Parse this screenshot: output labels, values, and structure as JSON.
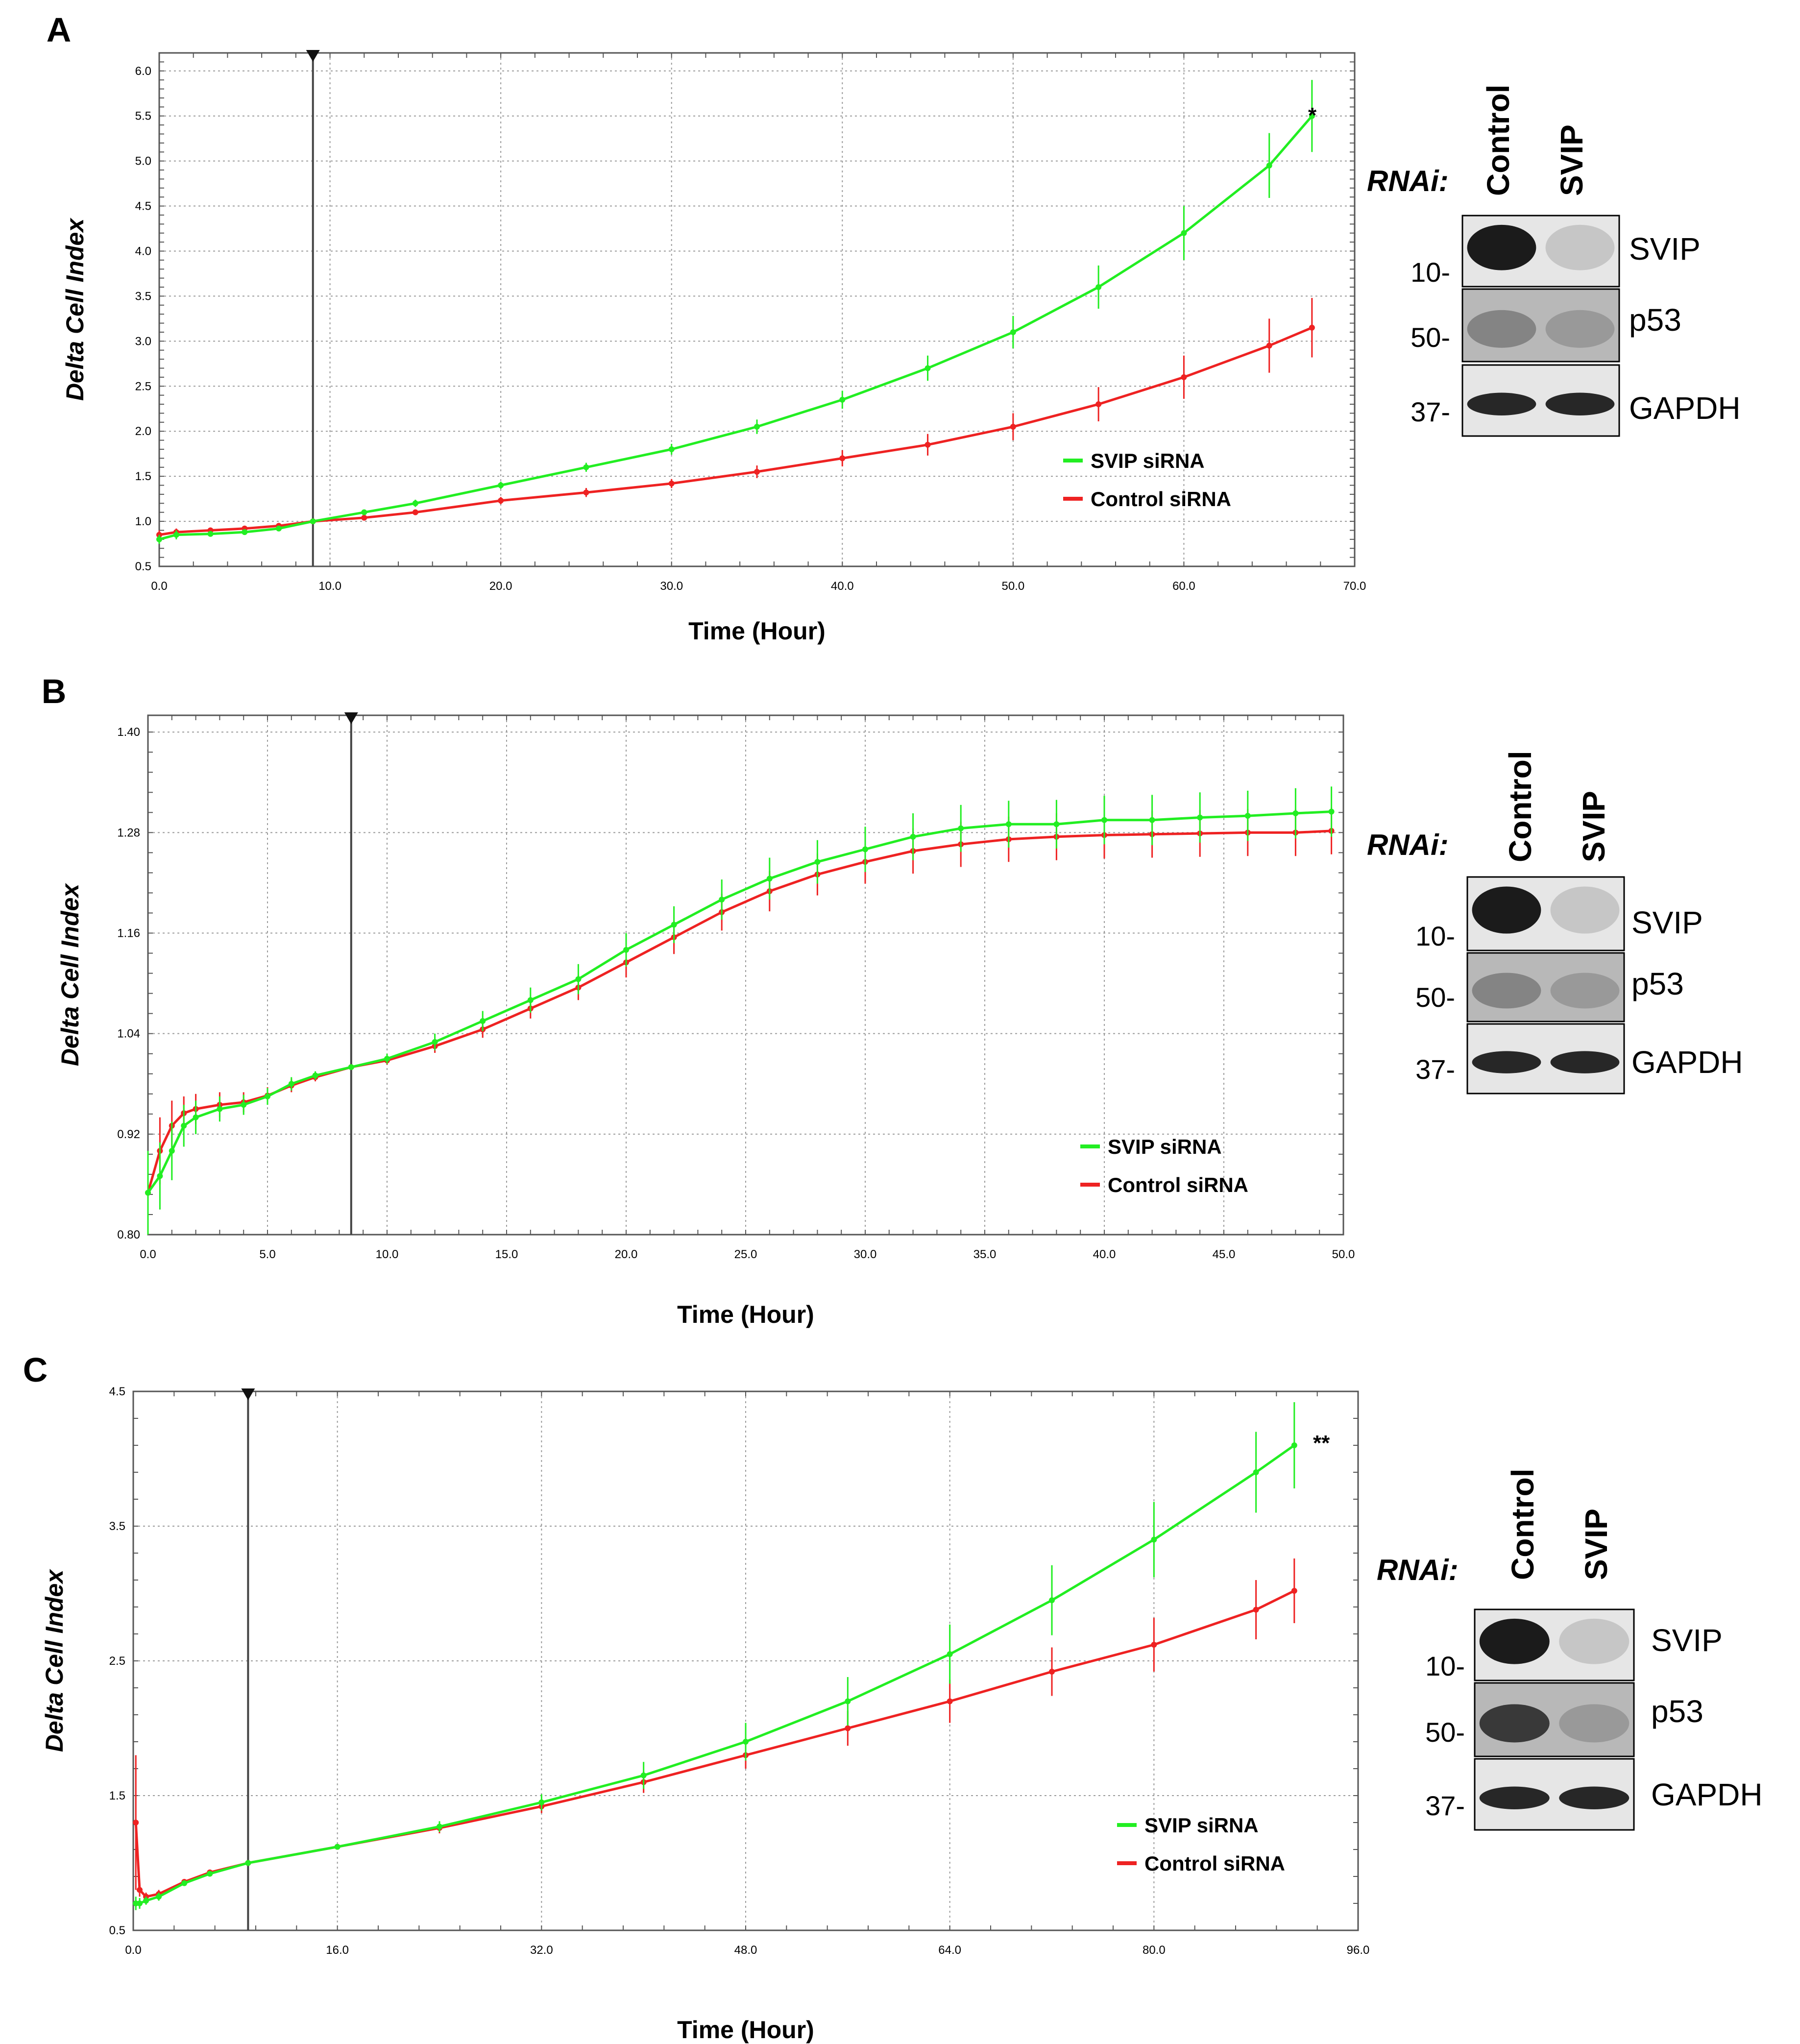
{
  "chart_data": [
    {
      "panel": "A",
      "type": "line",
      "xlabel": "Time (Hour)",
      "ylabel": "Delta Cell Index",
      "xlim": [
        0,
        70
      ],
      "ylim": [
        0.5,
        6.2
      ],
      "xticks": [
        0,
        10,
        20,
        30,
        40,
        50,
        60,
        70
      ],
      "xtick_labels": [
        "0.0",
        "10.0",
        "20.0",
        "30.0",
        "40.0",
        "50.0",
        "60.0",
        "70.0"
      ],
      "yticks": [
        0.5,
        1.0,
        1.5,
        2.0,
        2.5,
        3.0,
        3.5,
        4.0,
        4.5,
        5.0,
        5.5,
        6.0
      ],
      "ytick_labels": [
        "0.5",
        "1.0",
        "1.5",
        "2.0",
        "2.5",
        "3.0",
        "3.5",
        "4.0",
        "4.5",
        "5.0",
        "5.5",
        "6.0"
      ],
      "normalization_time": 9,
      "significance": "*",
      "legend": [
        "SVIP siRNA",
        "Control siRNA"
      ],
      "x": [
        0,
        1,
        3,
        5,
        7,
        9,
        12,
        15,
        20,
        25,
        30,
        35,
        40,
        45,
        50,
        55,
        60,
        65,
        67.5
      ],
      "series": [
        {
          "name": "SVIP siRNA",
          "color": "#22ee22",
          "values": [
            0.8,
            0.85,
            0.86,
            0.88,
            0.92,
            1.0,
            1.1,
            1.2,
            1.4,
            1.6,
            1.8,
            2.05,
            2.35,
            2.7,
            3.1,
            3.6,
            4.2,
            4.95,
            5.5
          ],
          "errors": [
            0.05,
            0.05,
            0.03,
            0.03,
            0.03,
            0.0,
            0.03,
            0.04,
            0.04,
            0.05,
            0.06,
            0.08,
            0.1,
            0.14,
            0.18,
            0.24,
            0.3,
            0.36,
            0.4
          ]
        },
        {
          "name": "Control siRNA",
          "color": "#ee2222",
          "values": [
            0.85,
            0.88,
            0.9,
            0.92,
            0.95,
            1.0,
            1.04,
            1.1,
            1.23,
            1.32,
            1.42,
            1.55,
            1.7,
            1.85,
            2.05,
            2.3,
            2.6,
            2.95,
            3.15
          ],
          "errors": [
            0.05,
            0.04,
            0.03,
            0.03,
            0.03,
            0.0,
            0.03,
            0.03,
            0.04,
            0.05,
            0.05,
            0.07,
            0.09,
            0.12,
            0.15,
            0.19,
            0.24,
            0.3,
            0.33
          ]
        }
      ]
    },
    {
      "panel": "B",
      "type": "line",
      "xlabel": "Time (Hour)",
      "ylabel": "Delta Cell Index",
      "xlim": [
        0,
        50
      ],
      "ylim": [
        0.8,
        1.42
      ],
      "xticks": [
        0,
        5,
        10,
        15,
        20,
        25,
        30,
        35,
        40,
        45,
        50
      ],
      "xtick_labels": [
        "0.0",
        "5.0",
        "10.0",
        "15.0",
        "20.0",
        "25.0",
        "30.0",
        "35.0",
        "40.0",
        "45.0",
        "50.0"
      ],
      "yticks": [
        0.8,
        0.92,
        1.04,
        1.16,
        1.28,
        1.4
      ],
      "ytick_labels": [
        "0.80",
        "0.92",
        "1.04",
        "1.16",
        "1.28",
        "1.40"
      ],
      "normalization_time": 8.5,
      "significance": "",
      "legend": [
        "SVIP siRNA",
        "Control siRNA"
      ],
      "x": [
        0,
        0.5,
        1,
        1.5,
        2,
        3,
        4,
        5,
        6,
        7,
        8.5,
        10,
        12,
        14,
        16,
        18,
        20,
        22,
        24,
        26,
        28,
        30,
        32,
        34,
        36,
        38,
        40,
        42,
        44,
        46,
        48,
        49.5
      ],
      "series": [
        {
          "name": "SVIP siRNA",
          "color": "#22ee22",
          "values": [
            0.85,
            0.87,
            0.9,
            0.93,
            0.94,
            0.95,
            0.955,
            0.965,
            0.98,
            0.99,
            1.0,
            1.01,
            1.03,
            1.055,
            1.08,
            1.105,
            1.14,
            1.17,
            1.2,
            1.225,
            1.245,
            1.26,
            1.275,
            1.285,
            1.29,
            1.29,
            1.295,
            1.295,
            1.298,
            1.3,
            1.303,
            1.305
          ],
          "errors": [
            0.05,
            0.04,
            0.035,
            0.025,
            0.02,
            0.015,
            0.012,
            0.01,
            0.008,
            0.005,
            0.0,
            0.006,
            0.01,
            0.012,
            0.015,
            0.018,
            0.02,
            0.022,
            0.024,
            0.025,
            0.026,
            0.027,
            0.028,
            0.028,
            0.028,
            0.029,
            0.029,
            0.03,
            0.03,
            0.03,
            0.03,
            0.03
          ]
        },
        {
          "name": "Control siRNA",
          "color": "#ee2222",
          "values": [
            0.85,
            0.9,
            0.93,
            0.945,
            0.95,
            0.955,
            0.958,
            0.966,
            0.978,
            0.988,
            1.0,
            1.008,
            1.025,
            1.045,
            1.07,
            1.095,
            1.125,
            1.155,
            1.185,
            1.21,
            1.23,
            1.245,
            1.258,
            1.266,
            1.272,
            1.275,
            1.277,
            1.278,
            1.279,
            1.28,
            1.28,
            1.282
          ],
          "errors": [
            0.05,
            0.04,
            0.03,
            0.02,
            0.018,
            0.015,
            0.012,
            0.01,
            0.008,
            0.005,
            0.0,
            0.005,
            0.008,
            0.01,
            0.012,
            0.015,
            0.018,
            0.02,
            0.022,
            0.024,
            0.025,
            0.026,
            0.027,
            0.027,
            0.027,
            0.028,
            0.028,
            0.028,
            0.028,
            0.028,
            0.028,
            0.028
          ]
        }
      ]
    },
    {
      "panel": "C",
      "type": "line",
      "xlabel": "Time (Hour)",
      "ylabel": "Delta Cell Index",
      "xlim": [
        0,
        96
      ],
      "ylim": [
        0.5,
        4.5
      ],
      "xticks": [
        0,
        16,
        32,
        48,
        64,
        80,
        96
      ],
      "xtick_labels": [
        "0.0",
        "16.0",
        "32.0",
        "48.0",
        "64.0",
        "80.0",
        "96.0"
      ],
      "yticks": [
        0.5,
        1.5,
        2.5,
        3.5,
        4.5
      ],
      "ytick_labels": [
        "0.5",
        "1.5",
        "2.5",
        "3.5",
        "4.5"
      ],
      "normalization_time": 9,
      "significance": "**",
      "legend": [
        "SVIP siRNA",
        "Control siRNA"
      ],
      "x": [
        0.2,
        0.5,
        1,
        2,
        4,
        6,
        9,
        16,
        24,
        32,
        40,
        48,
        56,
        64,
        72,
        80,
        88,
        91
      ],
      "series": [
        {
          "name": "SVIP siRNA",
          "color": "#22ee22",
          "values": [
            0.7,
            0.7,
            0.72,
            0.75,
            0.85,
            0.92,
            1.0,
            1.12,
            1.27,
            1.45,
            1.65,
            1.9,
            2.2,
            2.55,
            2.95,
            3.4,
            3.9,
            4.1
          ],
          "errors": [
            0.05,
            0.04,
            0.03,
            0.03,
            0.02,
            0.02,
            0.0,
            0.02,
            0.04,
            0.06,
            0.1,
            0.14,
            0.18,
            0.22,
            0.26,
            0.28,
            0.3,
            0.32
          ]
        },
        {
          "name": "Control siRNA",
          "color": "#ee2222",
          "values": [
            1.3,
            0.8,
            0.75,
            0.77,
            0.86,
            0.93,
            1.0,
            1.12,
            1.26,
            1.42,
            1.6,
            1.8,
            2.0,
            2.2,
            2.42,
            2.62,
            2.88,
            3.02
          ],
          "errors": [
            0.5,
            0.05,
            0.03,
            0.03,
            0.02,
            0.02,
            0.0,
            0.02,
            0.04,
            0.05,
            0.08,
            0.1,
            0.13,
            0.16,
            0.18,
            0.2,
            0.22,
            0.24
          ]
        }
      ]
    }
  ],
  "western_blots": [
    {
      "panel": "A",
      "rnai_label": "RNAi:",
      "lanes": [
        "Control",
        "SVIP"
      ],
      "rows": [
        {
          "protein": "SVIP",
          "marker": "10-"
        },
        {
          "protein": "p53",
          "marker": "50-"
        },
        {
          "protein": "GAPDH",
          "marker": "37-"
        }
      ]
    },
    {
      "panel": "B",
      "rnai_label": "RNAi:",
      "lanes": [
        "Control",
        "SVIP"
      ],
      "rows": [
        {
          "protein": "SVIP",
          "marker": "10-"
        },
        {
          "protein": "p53",
          "marker": "50-"
        },
        {
          "protein": "GAPDH",
          "marker": "37-"
        }
      ]
    },
    {
      "panel": "C",
      "rnai_label": "RNAi:",
      "lanes": [
        "Control",
        "SVIP"
      ],
      "rows": [
        {
          "protein": "SVIP",
          "marker": "10-"
        },
        {
          "protein": "p53",
          "marker": "50-"
        },
        {
          "protein": "GAPDH",
          "marker": "37-"
        }
      ]
    }
  ]
}
